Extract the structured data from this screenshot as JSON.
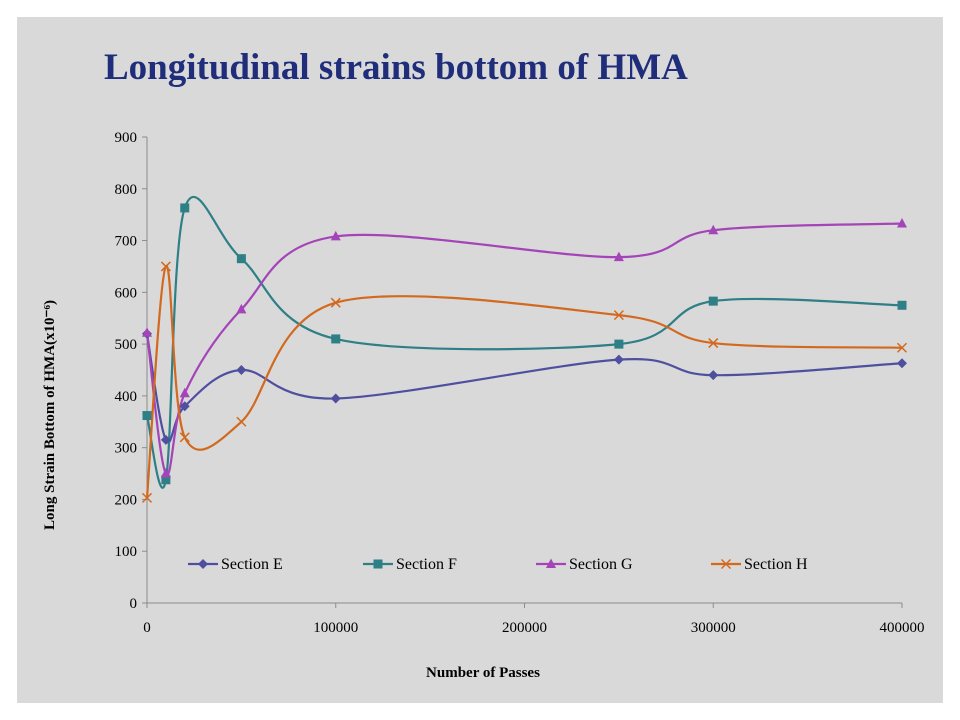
{
  "chart_data": {
    "type": "line",
    "title": "Longitudinal strains bottom of HMA",
    "xlabel": "Number of Passes",
    "ylabel": "Long Strain Bottom of HMA(x10⁻⁶)",
    "xlim": [
      0,
      400000
    ],
    "ylim": [
      0,
      900
    ],
    "x_ticks": [
      0,
      100000,
      200000,
      300000,
      400000
    ],
    "y_ticks": [
      0,
      100,
      200,
      300,
      400,
      500,
      600,
      700,
      800,
      900
    ],
    "x_tick_labels": [
      "0",
      "100000",
      "200000",
      "300000",
      "400000"
    ],
    "y_tick_labels": [
      "0",
      "100",
      "200",
      "300",
      "400",
      "500",
      "600",
      "700",
      "800",
      "900"
    ],
    "grid": false,
    "smooth": true,
    "legend_position": "inside-bottom",
    "series": [
      {
        "name": "Section E",
        "color": "#4f4fa0",
        "marker": "diamond",
        "points": [
          [
            0,
            520
          ],
          [
            10000,
            315
          ],
          [
            20000,
            380
          ],
          [
            50000,
            450
          ],
          [
            100000,
            395
          ],
          [
            250000,
            470
          ],
          [
            300000,
            440
          ],
          [
            400000,
            463
          ]
        ]
      },
      {
        "name": "Section F",
        "color": "#2e7f86",
        "marker": "square",
        "points": [
          [
            0,
            362
          ],
          [
            10000,
            238
          ],
          [
            20000,
            763
          ],
          [
            50000,
            665
          ],
          [
            100000,
            510
          ],
          [
            250000,
            500
          ],
          [
            300000,
            583
          ],
          [
            400000,
            575
          ]
        ]
      },
      {
        "name": "Section G",
        "color": "#a444b8",
        "marker": "triangle",
        "points": [
          [
            0,
            522
          ],
          [
            10000,
            250
          ],
          [
            20000,
            405
          ],
          [
            50000,
            567
          ],
          [
            100000,
            708
          ],
          [
            250000,
            668
          ],
          [
            300000,
            720
          ],
          [
            400000,
            733
          ]
        ]
      },
      {
        "name": "Section H",
        "color": "#d2691e",
        "marker": "x",
        "points": [
          [
            0,
            203
          ],
          [
            10000,
            650
          ],
          [
            20000,
            320
          ],
          [
            50000,
            350
          ],
          [
            100000,
            580
          ],
          [
            250000,
            556
          ],
          [
            300000,
            502
          ],
          [
            400000,
            493
          ]
        ]
      }
    ]
  }
}
